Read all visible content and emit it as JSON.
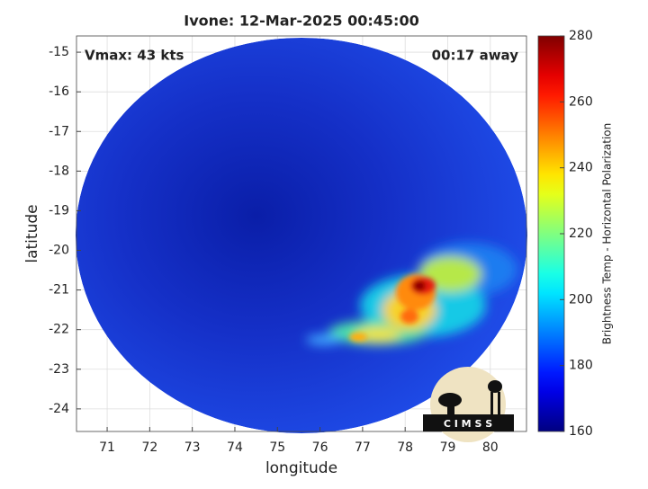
{
  "chart_data": {
    "type": "image",
    "title": "Ivone: 12-Mar-2025 00:45:00",
    "annotations": [
      "Vmax: 43 kts",
      "00:17 away"
    ],
    "x_label": "longitude",
    "y_label": "latitude",
    "xlim": [
      70.28,
      80.85
    ],
    "xticks": [
      71,
      72,
      73,
      74,
      75,
      76,
      77,
      78,
      79,
      80
    ],
    "ylim": [
      -24.57,
      -14.59
    ],
    "yticks": [
      -24,
      -23,
      -22,
      -21,
      -20,
      -19,
      -18,
      -17,
      -16,
      -15
    ],
    "grid": true,
    "colorbar": {
      "label": "Brightness Temp - Horizontal Polarization",
      "colormap": "jet",
      "lim": [
        160,
        280
      ],
      "ticks": [
        160,
        180,
        200,
        220,
        240,
        260,
        280
      ]
    },
    "logo_text": "C I M S S"
  }
}
